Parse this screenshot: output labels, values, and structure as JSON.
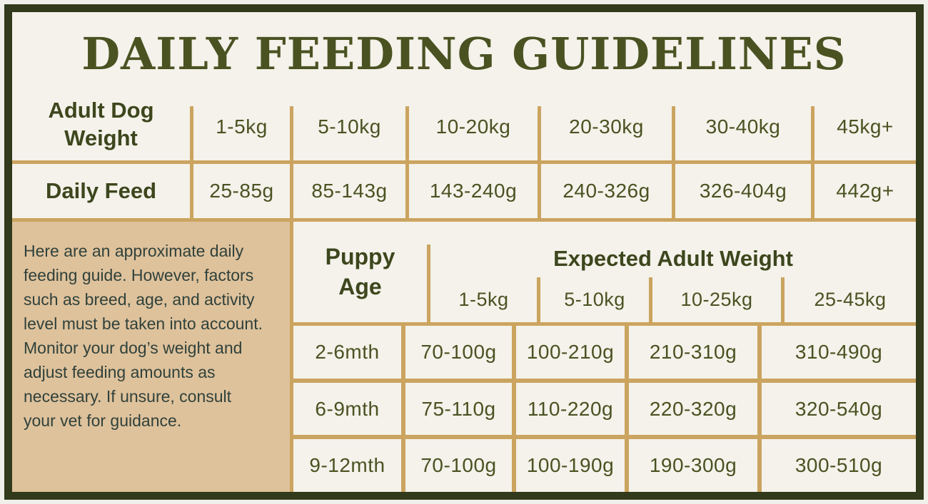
{
  "title": "DAILY FEEDING GUIDELINES",
  "adult_table": {
    "weight_label": "Adult Dog Weight",
    "feed_label": "Daily Feed",
    "weights": [
      "1-5kg",
      "5-10kg",
      "10-20kg",
      "20-30kg",
      "30-40kg",
      "45kg+"
    ],
    "feeds": [
      "25-85g",
      "85-143g",
      "143-240g",
      "240-326g",
      "326-404g",
      "442g+"
    ]
  },
  "note": {
    "text": "Here are an approximate daily feeding guide. However, factors such as breed, age, and activity level must be taken into account. Monitor your dog’s weight and adjust feeding amounts as necessary. If unsure, consult your vet for guidance."
  },
  "puppy_table": {
    "age_label": "Puppy Age",
    "group_header": "Expected Adult Weight",
    "weight_cols": [
      "1-5kg",
      "5-10kg",
      "10-25kg",
      "25-45kg"
    ],
    "rows": [
      {
        "age": "2-6mth",
        "values": [
          "70-100g",
          "100-210g",
          "210-310g",
          "310-490g"
        ]
      },
      {
        "age": "6-9mth",
        "values": [
          "75-110g",
          "110-220g",
          "220-320g",
          "320-540g"
        ]
      },
      {
        "age": "9-12mth",
        "values": [
          "70-100g",
          "100-190g",
          "190-300g",
          "300-510g"
        ]
      }
    ]
  },
  "colors": {
    "frame_border_green": "#313a1b",
    "background_offwhite": "#f4f2ea",
    "gridline_gold": "#cba460",
    "note_panel_tan": "#dec29c",
    "heading_green": "#3d461d",
    "value_green": "#4a5222",
    "note_text_teal": "#30413a"
  },
  "chart_data": [
    {
      "type": "table",
      "title": "Adult dog daily feeding guide",
      "columns": [
        "Adult Dog Weight",
        "1-5kg",
        "5-10kg",
        "10-20kg",
        "20-30kg",
        "30-40kg",
        "45kg+"
      ],
      "rows": [
        [
          "Daily Feed",
          "25-85g",
          "85-143g",
          "143-240g",
          "240-326g",
          "326-404g",
          "442g+"
        ]
      ]
    },
    {
      "type": "table",
      "title": "Puppy feeding guide by Expected Adult Weight",
      "columns": [
        "Puppy Age",
        "1-5kg",
        "5-10kg",
        "10-25kg",
        "25-45kg"
      ],
      "rows": [
        [
          "2-6mth",
          "70-100g",
          "100-210g",
          "210-310g",
          "310-490g"
        ],
        [
          "6-9mth",
          "75-110g",
          "110-220g",
          "220-320g",
          "320-540g"
        ],
        [
          "9-12mth",
          "70-100g",
          "100-190g",
          "190-300g",
          "300-510g"
        ]
      ]
    }
  ]
}
